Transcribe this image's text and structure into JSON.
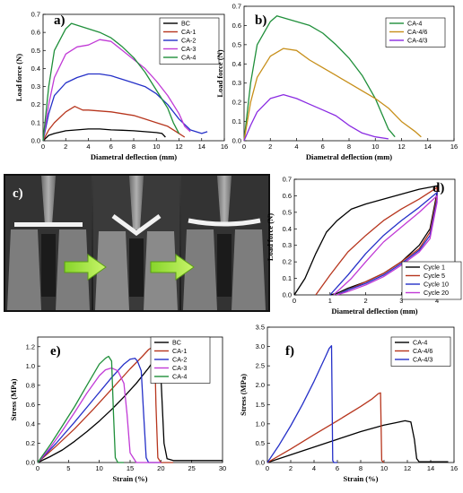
{
  "colors": {
    "black": "#000000",
    "red": "#b7361e",
    "blue": "#2530c8",
    "magenta": "#c13ad6",
    "green": "#1f8f3a",
    "orange": "#c78f1a",
    "purple": "#8a2be2"
  },
  "photo": {
    "label": "c)",
    "description_icons": [
      "arrow-right-icon",
      "arrow-right-icon"
    ]
  },
  "chart_data": [
    {
      "id": "a",
      "panel_label": "a)",
      "type": "line",
      "xlabel": "Diametral deflection (mm)",
      "ylabel": "Load force (N)",
      "xlim": [
        0,
        16
      ],
      "ylim": [
        0,
        0.7
      ],
      "xticks": [
        0,
        2,
        4,
        6,
        8,
        10,
        12,
        14,
        16
      ],
      "yticks": [
        0.0,
        0.1,
        0.2,
        0.3,
        0.4,
        0.5,
        0.6,
        0.7
      ],
      "legend_position": "top-right",
      "series": [
        {
          "name": "BC",
          "color": "black",
          "x": [
            0,
            0.5,
            1,
            2,
            3,
            4,
            5,
            6,
            7,
            8,
            9,
            10,
            10.5,
            10.8
          ],
          "y": [
            0,
            0.03,
            0.04,
            0.055,
            0.06,
            0.065,
            0.065,
            0.06,
            0.058,
            0.055,
            0.05,
            0.045,
            0.04,
            0.02
          ]
        },
        {
          "name": "CA-1",
          "color": "red",
          "x": [
            0,
            0.5,
            1,
            2,
            2.8,
            3.5,
            4,
            5,
            6,
            7,
            8,
            9,
            10,
            11,
            11.5,
            12,
            12.5
          ],
          "y": [
            0,
            0.06,
            0.1,
            0.16,
            0.19,
            0.17,
            0.17,
            0.165,
            0.16,
            0.15,
            0.14,
            0.12,
            0.1,
            0.08,
            0.06,
            0.04,
            0.02
          ]
        },
        {
          "name": "CA-2",
          "color": "blue",
          "x": [
            0,
            0.5,
            1,
            2,
            3,
            4,
            5,
            6,
            7,
            8,
            9,
            10,
            11,
            12,
            13,
            13.5,
            14,
            14.5
          ],
          "y": [
            0,
            0.15,
            0.25,
            0.32,
            0.35,
            0.37,
            0.37,
            0.36,
            0.34,
            0.32,
            0.3,
            0.26,
            0.2,
            0.12,
            0.06,
            0.05,
            0.04,
            0.05
          ]
        },
        {
          "name": "CA-3",
          "color": "magenta",
          "x": [
            0,
            0.5,
            1,
            2,
            3,
            4,
            5,
            6,
            7,
            8,
            9,
            10,
            11,
            12,
            12.5,
            13
          ],
          "y": [
            0,
            0.2,
            0.35,
            0.48,
            0.52,
            0.53,
            0.56,
            0.55,
            0.5,
            0.45,
            0.4,
            0.33,
            0.25,
            0.15,
            0.08,
            0.05
          ]
        },
        {
          "name": "CA-4",
          "color": "green",
          "x": [
            0,
            0.5,
            1,
            2,
            2.5,
            3,
            4,
            5,
            6,
            7,
            8,
            9,
            10,
            11,
            11.5,
            12
          ],
          "y": [
            0,
            0.3,
            0.5,
            0.62,
            0.65,
            0.64,
            0.62,
            0.6,
            0.57,
            0.52,
            0.46,
            0.38,
            0.28,
            0.18,
            0.1,
            0.04
          ]
        }
      ]
    },
    {
      "id": "b",
      "panel_label": "b)",
      "type": "line",
      "xlabel": "Diametral deflection (mm)",
      "ylabel": "Load force (N)",
      "xlim": [
        0,
        16
      ],
      "ylim": [
        0,
        0.7
      ],
      "xticks": [
        0,
        2,
        4,
        6,
        8,
        10,
        12,
        14,
        16
      ],
      "yticks": [
        0.0,
        0.1,
        0.2,
        0.3,
        0.4,
        0.5,
        0.6,
        0.7
      ],
      "legend_position": "top-right",
      "series": [
        {
          "name": "CA-4",
          "color": "green",
          "x": [
            0,
            0.5,
            1,
            2,
            2.5,
            3,
            4,
            5,
            6,
            7,
            8,
            9,
            10,
            10.5,
            11,
            11.5
          ],
          "y": [
            0,
            0.3,
            0.5,
            0.62,
            0.65,
            0.64,
            0.62,
            0.6,
            0.56,
            0.5,
            0.43,
            0.34,
            0.22,
            0.14,
            0.06,
            0.02
          ]
        },
        {
          "name": "CA-4/6",
          "color": "orange",
          "x": [
            0,
            0.5,
            1,
            2,
            3,
            4,
            5,
            6,
            7,
            8,
            9,
            10,
            11,
            12,
            13,
            13.5
          ],
          "y": [
            0,
            0.2,
            0.33,
            0.44,
            0.48,
            0.47,
            0.42,
            0.38,
            0.34,
            0.3,
            0.26,
            0.22,
            0.17,
            0.1,
            0.05,
            0.02
          ]
        },
        {
          "name": "CA-4/3",
          "color": "purple",
          "x": [
            0,
            0.5,
            1,
            2,
            3,
            4,
            5,
            6,
            7,
            8,
            9,
            10,
            11
          ],
          "y": [
            0,
            0.08,
            0.15,
            0.22,
            0.24,
            0.22,
            0.19,
            0.16,
            0.13,
            0.08,
            0.04,
            0.02,
            0.01
          ]
        }
      ]
    },
    {
      "id": "d",
      "panel_label": "d)",
      "type": "line",
      "xlabel": "Diametral deflection (mm)",
      "ylabel": "Load force (N)",
      "xlim": [
        0,
        4.5
      ],
      "ylim": [
        0,
        0.7
      ],
      "xticks": [
        0,
        1,
        2,
        3,
        4
      ],
      "yticks": [
        0.0,
        0.1,
        0.2,
        0.3,
        0.4,
        0.5,
        0.6,
        0.7
      ],
      "legend_position": "bottom-right",
      "series": [
        {
          "name": "Cycle 1",
          "color": "black",
          "x": [
            0,
            0.3,
            0.6,
            0.9,
            1.2,
            1.6,
            2,
            2.5,
            3,
            3.5,
            4,
            4,
            3.8,
            3.5,
            3,
            2.5,
            2,
            1.5,
            1.2,
            1
          ],
          "y": [
            0,
            0.1,
            0.25,
            0.38,
            0.45,
            0.52,
            0.55,
            0.58,
            0.61,
            0.64,
            0.66,
            0.62,
            0.4,
            0.3,
            0.2,
            0.13,
            0.08,
            0.04,
            0.01,
            0
          ]
        },
        {
          "name": "Cycle 5",
          "color": "red",
          "x": [
            0.6,
            1,
            1.5,
            2,
            2.5,
            3,
            3.5,
            4,
            4,
            3.8,
            3.5,
            3,
            2.5,
            2,
            1.5,
            1.2
          ],
          "y": [
            0,
            0.12,
            0.26,
            0.36,
            0.45,
            0.52,
            0.58,
            0.65,
            0.6,
            0.38,
            0.28,
            0.2,
            0.13,
            0.08,
            0.03,
            0
          ]
        },
        {
          "name": "Cycle 10",
          "color": "blue",
          "x": [
            1,
            1.5,
            2,
            2.5,
            3,
            3.5,
            4,
            4,
            3.8,
            3.5,
            3,
            2.5,
            2,
            1.5,
            1.2
          ],
          "y": [
            0,
            0.12,
            0.25,
            0.36,
            0.45,
            0.53,
            0.62,
            0.58,
            0.36,
            0.27,
            0.19,
            0.12,
            0.07,
            0.03,
            0
          ]
        },
        {
          "name": "Cycle 20",
          "color": "magenta",
          "x": [
            1.1,
            1.6,
            2,
            2.5,
            3,
            3.5,
            4,
            4,
            3.8,
            3.5,
            3,
            2.5,
            2,
            1.5,
            1.2
          ],
          "y": [
            0,
            0.1,
            0.2,
            0.32,
            0.41,
            0.5,
            0.6,
            0.56,
            0.34,
            0.26,
            0.18,
            0.11,
            0.06,
            0.02,
            0
          ]
        }
      ]
    },
    {
      "id": "e",
      "panel_label": "e)",
      "type": "line",
      "xlabel": "Strain (%)",
      "ylabel": "Stress (MPa)",
      "xlim": [
        0,
        30
      ],
      "ylim": [
        0,
        1.3
      ],
      "xticks": [
        0,
        5,
        10,
        15,
        20,
        25,
        30
      ],
      "yticks": [
        0.0,
        0.2,
        0.4,
        0.6,
        0.8,
        1.0,
        1.2
      ],
      "legend_position": "top-right",
      "series": [
        {
          "name": "BC",
          "color": "black",
          "x": [
            0,
            2,
            4,
            6,
            8,
            10,
            12,
            14,
            16,
            18,
            19,
            19.5,
            20,
            20.5,
            21,
            22,
            25,
            30
          ],
          "y": [
            0,
            0.06,
            0.13,
            0.22,
            0.32,
            0.43,
            0.55,
            0.68,
            0.82,
            0.98,
            1.07,
            1.09,
            0.9,
            0.2,
            0.04,
            0.02,
            0.02,
            0.02
          ]
        },
        {
          "name": "CA-1",
          "color": "red",
          "x": [
            0,
            3,
            6,
            9,
            12,
            15,
            17,
            18,
            18.5,
            19,
            19.2,
            19.5,
            20,
            22
          ],
          "y": [
            0,
            0.17,
            0.35,
            0.55,
            0.76,
            0.97,
            1.1,
            1.17,
            1.19,
            1.15,
            0.6,
            0.05,
            0,
            0
          ]
        },
        {
          "name": "CA-2",
          "color": "blue",
          "x": [
            0,
            3,
            6,
            9,
            12,
            14,
            15,
            15.8,
            16.2,
            16.8,
            17.2,
            17.6,
            18,
            20
          ],
          "y": [
            0,
            0.2,
            0.42,
            0.65,
            0.88,
            1.02,
            1.07,
            1.08,
            1.05,
            0.95,
            0.5,
            0.05,
            0,
            0
          ]
        },
        {
          "name": "CA-3",
          "color": "magenta",
          "x": [
            0,
            2,
            4,
            6,
            8,
            10,
            11,
            12,
            13,
            14,
            14.5,
            15,
            16,
            20
          ],
          "y": [
            0,
            0.15,
            0.33,
            0.52,
            0.72,
            0.9,
            0.96,
            0.98,
            0.95,
            0.82,
            0.5,
            0.1,
            0,
            0
          ]
        },
        {
          "name": "CA-4",
          "color": "green",
          "x": [
            0,
            2,
            4,
            6,
            8,
            10,
            11,
            11.5,
            12,
            12.3,
            12.6,
            13,
            14
          ],
          "y": [
            0,
            0.18,
            0.38,
            0.58,
            0.8,
            1.02,
            1.08,
            1.1,
            1.05,
            0.5,
            0.05,
            0,
            0
          ]
        }
      ]
    },
    {
      "id": "f",
      "panel_label": "f)",
      "type": "line",
      "xlabel": "Strain (%)",
      "ylabel": "Stress (MPa)",
      "xlim": [
        0,
        16
      ],
      "ylim": [
        0,
        3.5
      ],
      "xticks": [
        0,
        2,
        4,
        6,
        8,
        10,
        12,
        14,
        16
      ],
      "yticks": [
        0.0,
        0.5,
        1.0,
        1.5,
        2.0,
        2.5,
        3.0,
        3.5
      ],
      "legend_position": "top-right",
      "series": [
        {
          "name": "CA-4",
          "color": "black",
          "x": [
            0,
            2,
            4,
            6,
            8,
            10,
            11,
            11.8,
            12.3,
            12.6,
            12.8,
            13,
            14,
            15.5
          ],
          "y": [
            0,
            0.2,
            0.4,
            0.6,
            0.8,
            0.97,
            1.03,
            1.08,
            1.05,
            0.6,
            0.1,
            0.02,
            0.02,
            0.02
          ]
        },
        {
          "name": "CA-4/6",
          "color": "red",
          "x": [
            0,
            2,
            4,
            6,
            8,
            9,
            9.5,
            9.7,
            9.8,
            10
          ],
          "y": [
            0,
            0.35,
            0.72,
            1.08,
            1.45,
            1.65,
            1.78,
            1.8,
            0.05,
            0
          ]
        },
        {
          "name": "CA-4/3",
          "color": "blue",
          "x": [
            0,
            1,
            2,
            3,
            4,
            5,
            5.3,
            5.5,
            5.6,
            5.7,
            6
          ],
          "y": [
            0,
            0.45,
            0.95,
            1.5,
            2.1,
            2.75,
            2.95,
            3.02,
            0.05,
            0,
            0
          ]
        }
      ]
    }
  ]
}
